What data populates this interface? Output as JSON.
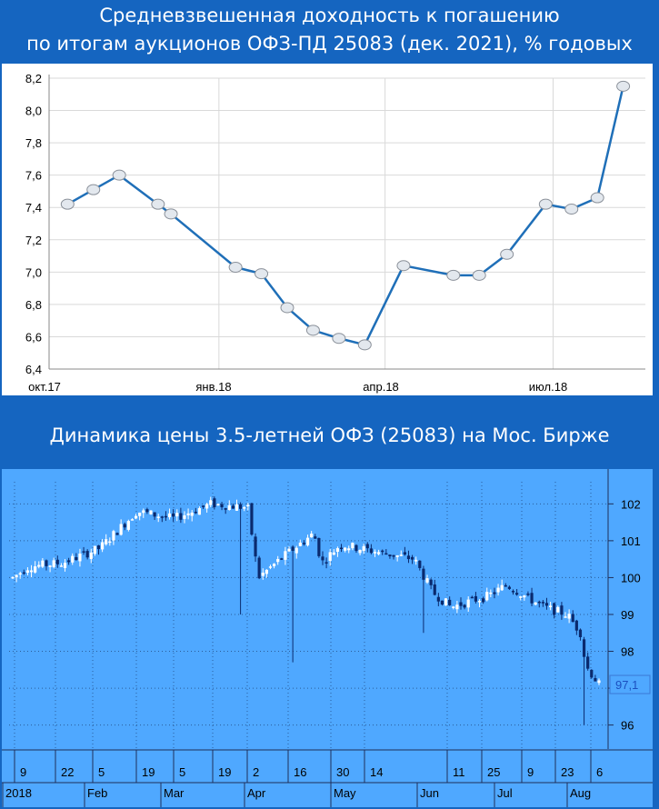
{
  "chart_data": [
    {
      "type": "line",
      "title": "Средневзвешенная доходность к погашению по итогам аукционов ОФЗ-ПД 25083 (дек. 2021), % годовых",
      "title_lines": [
        "Средневзвешенная доходность к погашению",
        "по итогам аукционов ОФЗ-ПД 25083 (дек. 2021), % годовых"
      ],
      "xlabel": "",
      "ylabel": "",
      "x_ticks": [
        "окт.17",
        "янв.18",
        "апр.18",
        "июл.18"
      ],
      "y_ticks": [
        "6,4",
        "6,6",
        "6,8",
        "7,0",
        "7,2",
        "7,4",
        "7,6",
        "7,8",
        "8,0",
        "8,2"
      ],
      "ylim": [
        6.4,
        8.2
      ],
      "xlim": [
        "2017-10-01",
        "2018-08-20"
      ],
      "grid": true,
      "line_color": "#1f6fb8",
      "marker_color": "#e3e8ee",
      "points": [
        {
          "x": "2017-10-11",
          "y": 7.42
        },
        {
          "x": "2017-10-25",
          "y": 7.51
        },
        {
          "x": "2017-11-08",
          "y": 7.6
        },
        {
          "x": "2017-11-29",
          "y": 7.42
        },
        {
          "x": "2017-12-06",
          "y": 7.36
        },
        {
          "x": "2018-01-10",
          "y": 7.03
        },
        {
          "x": "2018-01-24",
          "y": 6.99
        },
        {
          "x": "2018-02-07",
          "y": 6.78
        },
        {
          "x": "2018-02-21",
          "y": 6.64
        },
        {
          "x": "2018-03-07",
          "y": 6.59
        },
        {
          "x": "2018-03-21",
          "y": 6.55
        },
        {
          "x": "2018-04-11",
          "y": 7.04
        },
        {
          "x": "2018-05-08",
          "y": 6.98
        },
        {
          "x": "2018-05-22",
          "y": 6.98
        },
        {
          "x": "2018-06-06",
          "y": 7.11
        },
        {
          "x": "2018-06-27",
          "y": 7.42
        },
        {
          "x": "2018-07-11",
          "y": 7.39
        },
        {
          "x": "2018-07-25",
          "y": 7.46
        },
        {
          "x": "2018-08-08",
          "y": 8.15
        }
      ]
    },
    {
      "type": "candlestick",
      "title": "Динамика цены 3.5-летней ОФЗ (25083) на Мос. Бирже",
      "xlabel": "",
      "ylabel": "",
      "y_ticks": [
        "96",
        "97",
        "98",
        "99",
        "100",
        "101",
        "102"
      ],
      "ylim": [
        95.3,
        102.6
      ],
      "last_price_label": "97,1",
      "x_day_labels": [
        "9",
        "22",
        "5",
        "19",
        "5",
        "19",
        "2",
        "16",
        "30",
        "14",
        "11",
        "25",
        "9",
        "23",
        "6"
      ],
      "x_month_labels": [
        "2018",
        "Feb",
        "Mar",
        "Apr",
        "May",
        "Jun",
        "Jul",
        "Aug"
      ],
      "grid": true,
      "up_color": "#ffffff",
      "down_color": "#0a2a6e",
      "bar_count": 158,
      "close_approx": [
        {
          "x": "2018-01-03",
          "y": 100.0
        },
        {
          "x": "2018-01-09",
          "y": 100.3
        },
        {
          "x": "2018-01-22",
          "y": 100.4
        },
        {
          "x": "2018-02-05",
          "y": 100.8
        },
        {
          "x": "2018-02-12",
          "y": 101.3
        },
        {
          "x": "2018-02-19",
          "y": 101.8
        },
        {
          "x": "2018-03-05",
          "y": 101.6
        },
        {
          "x": "2018-03-19",
          "y": 102.0
        },
        {
          "x": "2018-04-02",
          "y": 101.9
        },
        {
          "x": "2018-04-06",
          "y": 100.0
        },
        {
          "x": "2018-04-16",
          "y": 100.6
        },
        {
          "x": "2018-04-27",
          "y": 101.2
        },
        {
          "x": "2018-04-30",
          "y": 100.4
        },
        {
          "x": "2018-05-07",
          "y": 100.9
        },
        {
          "x": "2018-05-21",
          "y": 100.7
        },
        {
          "x": "2018-06-04",
          "y": 100.5
        },
        {
          "x": "2018-06-11",
          "y": 99.6
        },
        {
          "x": "2018-06-18",
          "y": 99.2
        },
        {
          "x": "2018-07-02",
          "y": 99.5
        },
        {
          "x": "2018-07-09",
          "y": 99.8
        },
        {
          "x": "2018-07-23",
          "y": 99.2
        },
        {
          "x": "2018-08-01",
          "y": 99.0
        },
        {
          "x": "2018-08-06",
          "y": 98.5
        },
        {
          "x": "2018-08-08",
          "y": 97.6
        },
        {
          "x": "2018-08-13",
          "y": 97.1
        }
      ]
    }
  ]
}
